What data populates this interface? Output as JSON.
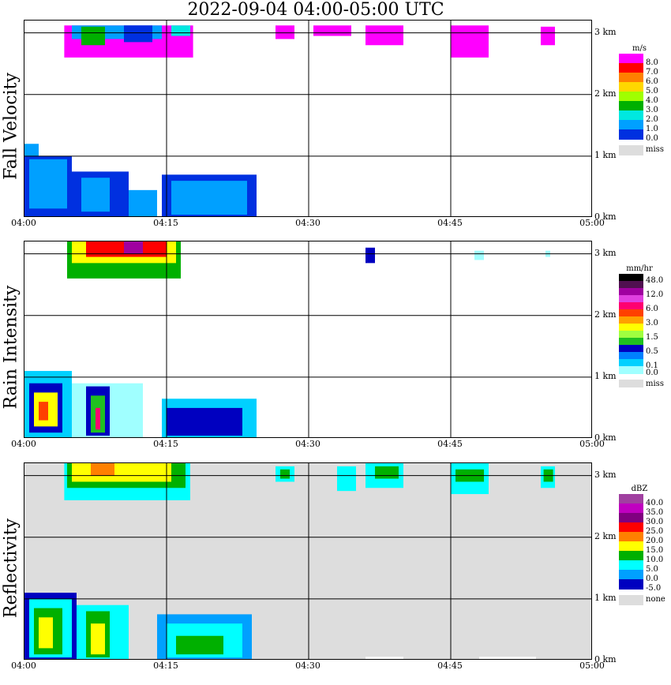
{
  "title": "2022-09-04   04:00-05:00 UTC",
  "chart_data": [
    {
      "type": "heatmap",
      "panel": "Fall Velocity",
      "unit": "m/s",
      "xlim": [
        "04:00",
        "05:00"
      ],
      "ylim_km": [
        0,
        3.2
      ],
      "x_ticks": [
        "04:00",
        "04:15",
        "04:30",
        "04:45",
        "05:00"
      ],
      "y_ticks": [
        "0 km",
        "1 km",
        "2 km",
        "3 km"
      ],
      "grid": true,
      "background": "#ffffff",
      "legend": {
        "placement": "right",
        "levels": [
          {
            "label": "8.0",
            "color": "#ff00ff"
          },
          {
            "label": "7.0",
            "color": "#ff0000"
          },
          {
            "label": "6.0",
            "color": "#ff8000"
          },
          {
            "label": "5.0",
            "color": "#ffd700"
          },
          {
            "label": "4.0",
            "color": "#a0ff00"
          },
          {
            "label": "3.0",
            "color": "#00b000"
          },
          {
            "label": "2.0",
            "color": "#00e8e0"
          },
          {
            "label": "1.0",
            "color": "#00a0ff"
          },
          {
            "label": "0.0",
            "color": "#0030e0"
          },
          {
            "label": "miss",
            "color": "#dddddd"
          }
        ]
      },
      "cells": [
        {
          "t0": 4.2,
          "t1": 17.8,
          "h0": 2.6,
          "h1": 3.12,
          "color": "#ff00ff"
        },
        {
          "t0": 5.0,
          "t1": 14.5,
          "h0": 2.9,
          "h1": 3.12,
          "color": "#00a0ff"
        },
        {
          "t0": 6.0,
          "t1": 8.5,
          "h0": 2.8,
          "h1": 3.1,
          "color": "#00b000"
        },
        {
          "t0": 10.5,
          "t1": 13.5,
          "h0": 2.85,
          "h1": 3.12,
          "color": "#0030e0"
        },
        {
          "t0": 15.5,
          "t1": 17.5,
          "h0": 2.95,
          "h1": 3.12,
          "color": "#00e8e0"
        },
        {
          "t0": 0.0,
          "t1": 1.5,
          "h0": 0.0,
          "h1": 1.2,
          "color": "#00a0ff"
        },
        {
          "t0": 0.0,
          "t1": 5.0,
          "h0": 0.0,
          "h1": 1.0,
          "color": "#0030e0"
        },
        {
          "t0": 0.5,
          "t1": 4.5,
          "h0": 0.15,
          "h1": 0.95,
          "color": "#00a0ff"
        },
        {
          "t0": 5.0,
          "t1": 11.0,
          "h0": 0.0,
          "h1": 0.75,
          "color": "#0030e0"
        },
        {
          "t0": 6.0,
          "t1": 9.0,
          "h0": 0.1,
          "h1": 0.65,
          "color": "#00a0ff"
        },
        {
          "t0": 11.0,
          "t1": 14.0,
          "h0": 0.0,
          "h1": 0.45,
          "color": "#00a0ff"
        },
        {
          "t0": 14.5,
          "t1": 24.5,
          "h0": 0.0,
          "h1": 0.7,
          "color": "#0030e0"
        },
        {
          "t0": 15.5,
          "t1": 23.5,
          "h0": 0.05,
          "h1": 0.6,
          "color": "#00a0ff"
        },
        {
          "t0": 26.5,
          "t1": 28.5,
          "h0": 2.9,
          "h1": 3.12,
          "color": "#ff00ff"
        },
        {
          "t0": 30.5,
          "t1": 34.5,
          "h0": 2.95,
          "h1": 3.12,
          "color": "#ff00ff"
        },
        {
          "t0": 36.0,
          "t1": 40.0,
          "h0": 2.8,
          "h1": 3.12,
          "color": "#ff00ff"
        },
        {
          "t0": 45.0,
          "t1": 49.0,
          "h0": 2.6,
          "h1": 3.12,
          "color": "#ff00ff"
        },
        {
          "t0": 54.5,
          "t1": 56.0,
          "h0": 2.8,
          "h1": 3.1,
          "color": "#ff00ff"
        }
      ]
    },
    {
      "type": "heatmap",
      "panel": "Rain Intensity",
      "unit": "mm/hr",
      "xlim": [
        "04:00",
        "05:00"
      ],
      "ylim_km": [
        0,
        3.2
      ],
      "x_ticks": [
        "04:00",
        "04:15",
        "04:30",
        "04:45",
        "05:00"
      ],
      "y_ticks": [
        "0 km",
        "1 km",
        "2 km",
        "3 km"
      ],
      "grid": true,
      "background": "#ffffff",
      "legend": {
        "placement": "right",
        "levels": [
          {
            "label": "48.0",
            "color": "#000000"
          },
          {
            "label": "",
            "color": "#501050"
          },
          {
            "label": "12.0",
            "color": "#a000a0"
          },
          {
            "label": "",
            "color": "#e040e0"
          },
          {
            "label": "6.0",
            "color": "#ff0070"
          },
          {
            "label": "",
            "color": "#ff4000"
          },
          {
            "label": "3.0",
            "color": "#ffa000"
          },
          {
            "label": "",
            "color": "#ffff00"
          },
          {
            "label": "1.5",
            "color": "#a0ff40"
          },
          {
            "label": "",
            "color": "#20c020"
          },
          {
            "label": "0.5",
            "color": "#0000c0"
          },
          {
            "label": "",
            "color": "#0080ff"
          },
          {
            "label": "0.1",
            "color": "#00d0ff"
          },
          {
            "label": "0.0",
            "color": "#a0ffff"
          },
          {
            "label": "miss",
            "color": "#dddddd"
          }
        ]
      },
      "cells": [
        {
          "t0": 4.5,
          "t1": 16.5,
          "h0": 2.6,
          "h1": 3.2,
          "color": "#00b000"
        },
        {
          "t0": 5.0,
          "t1": 16.0,
          "h0": 2.85,
          "h1": 3.2,
          "color": "#ffff00"
        },
        {
          "t0": 6.5,
          "t1": 15.0,
          "h0": 2.95,
          "h1": 3.2,
          "color": "#ff0000"
        },
        {
          "t0": 10.5,
          "t1": 12.5,
          "h0": 3.0,
          "h1": 3.2,
          "color": "#a000a0"
        },
        {
          "t0": 0.0,
          "t1": 5.0,
          "h0": 0.0,
          "h1": 1.1,
          "color": "#00d0ff"
        },
        {
          "t0": 0.5,
          "t1": 4.0,
          "h0": 0.1,
          "h1": 0.9,
          "color": "#0000c0"
        },
        {
          "t0": 1.0,
          "t1": 3.5,
          "h0": 0.2,
          "h1": 0.75,
          "color": "#ffff00"
        },
        {
          "t0": 1.5,
          "t1": 2.5,
          "h0": 0.3,
          "h1": 0.6,
          "color": "#ff4000"
        },
        {
          "t0": 5.0,
          "t1": 12.5,
          "h0": 0.0,
          "h1": 0.9,
          "color": "#a0ffff"
        },
        {
          "t0": 6.5,
          "t1": 9.0,
          "h0": 0.05,
          "h1": 0.85,
          "color": "#0000c0"
        },
        {
          "t0": 7.0,
          "t1": 8.5,
          "h0": 0.1,
          "h1": 0.7,
          "color": "#20c020"
        },
        {
          "t0": 7.5,
          "t1": 8.0,
          "h0": 0.15,
          "h1": 0.5,
          "color": "#ff0070"
        },
        {
          "t0": 14.5,
          "t1": 24.5,
          "h0": 0.0,
          "h1": 0.65,
          "color": "#00d0ff"
        },
        {
          "t0": 15.0,
          "t1": 23.0,
          "h0": 0.05,
          "h1": 0.5,
          "color": "#0000c0"
        },
        {
          "t0": 36.0,
          "t1": 37.0,
          "h0": 2.85,
          "h1": 3.1,
          "color": "#0000c0"
        },
        {
          "t0": 47.5,
          "t1": 48.5,
          "h0": 2.9,
          "h1": 3.05,
          "color": "#a0ffff"
        },
        {
          "t0": 55.0,
          "t1": 55.5,
          "h0": 2.95,
          "h1": 3.05,
          "color": "#a0ffff"
        }
      ]
    },
    {
      "type": "heatmap",
      "panel": "Reflectivity",
      "unit": "dBZ",
      "xlim": [
        "04:00",
        "05:00"
      ],
      "ylim_km": [
        0,
        3.2
      ],
      "x_ticks": [
        "04:00",
        "04:15",
        "04:30",
        "04:45",
        "05:00"
      ],
      "y_ticks": [
        "0 km",
        "1 km",
        "2 km",
        "3 km"
      ],
      "grid": true,
      "background": "#dddddd",
      "legend": {
        "placement": "right",
        "levels": [
          {
            "label": "40.0",
            "color": "#a040a0"
          },
          {
            "label": "35.0",
            "color": "#c000c0"
          },
          {
            "label": "30.0",
            "color": "#800080"
          },
          {
            "label": "25.0",
            "color": "#ff0000"
          },
          {
            "label": "20.0",
            "color": "#ff8000"
          },
          {
            "label": "15.0",
            "color": "#ffff00"
          },
          {
            "label": "10.0",
            "color": "#00b000"
          },
          {
            "label": "5.0",
            "color": "#00ffff"
          },
          {
            "label": "0.0",
            "color": "#00a0ff"
          },
          {
            "label": "-5.0",
            "color": "#0000c0"
          },
          {
            "label": "none",
            "color": "#dddddd"
          }
        ]
      },
      "cells": [
        {
          "t0": 4.2,
          "t1": 17.5,
          "h0": 2.6,
          "h1": 3.2,
          "color": "#00ffff"
        },
        {
          "t0": 4.5,
          "t1": 17.0,
          "h0": 2.8,
          "h1": 3.2,
          "color": "#00b000"
        },
        {
          "t0": 5.0,
          "t1": 15.5,
          "h0": 2.9,
          "h1": 3.2,
          "color": "#ffff00"
        },
        {
          "t0": 7.0,
          "t1": 9.5,
          "h0": 3.0,
          "h1": 3.2,
          "color": "#ff8000"
        },
        {
          "t0": 0.0,
          "t1": 5.5,
          "h0": 0.0,
          "h1": 1.1,
          "color": "#0000c0"
        },
        {
          "t0": 0.5,
          "t1": 5.0,
          "h0": 0.05,
          "h1": 1.0,
          "color": "#00ffff"
        },
        {
          "t0": 1.0,
          "t1": 4.0,
          "h0": 0.1,
          "h1": 0.85,
          "color": "#00b000"
        },
        {
          "t0": 1.5,
          "t1": 3.0,
          "h0": 0.2,
          "h1": 0.7,
          "color": "#ffff00"
        },
        {
          "t0": 5.5,
          "t1": 11.0,
          "h0": 0.0,
          "h1": 0.9,
          "color": "#00ffff"
        },
        {
          "t0": 6.5,
          "t1": 9.0,
          "h0": 0.05,
          "h1": 0.8,
          "color": "#00b000"
        },
        {
          "t0": 7.0,
          "t1": 8.5,
          "h0": 0.1,
          "h1": 0.6,
          "color": "#ffff00"
        },
        {
          "t0": 14.0,
          "t1": 24.0,
          "h0": 0.0,
          "h1": 0.75,
          "color": "#00a0ff"
        },
        {
          "t0": 15.0,
          "t1": 23.0,
          "h0": 0.05,
          "h1": 0.6,
          "color": "#00ffff"
        },
        {
          "t0": 16.0,
          "t1": 21.0,
          "h0": 0.1,
          "h1": 0.4,
          "color": "#00b000"
        },
        {
          "t0": 26.5,
          "t1": 28.5,
          "h0": 2.9,
          "h1": 3.15,
          "color": "#00ffff"
        },
        {
          "t0": 27.0,
          "t1": 28.0,
          "h0": 2.95,
          "h1": 3.1,
          "color": "#00b000"
        },
        {
          "t0": 33.0,
          "t1": 35.0,
          "h0": 2.75,
          "h1": 3.15,
          "color": "#00ffff"
        },
        {
          "t0": 36.0,
          "t1": 40.0,
          "h0": 2.8,
          "h1": 3.2,
          "color": "#00ffff"
        },
        {
          "t0": 37.0,
          "t1": 39.5,
          "h0": 2.95,
          "h1": 3.15,
          "color": "#00b000"
        },
        {
          "t0": 45.0,
          "t1": 49.0,
          "h0": 2.7,
          "h1": 3.2,
          "color": "#00ffff"
        },
        {
          "t0": 45.5,
          "t1": 48.5,
          "h0": 2.9,
          "h1": 3.1,
          "color": "#00b000"
        },
        {
          "t0": 54.5,
          "t1": 56.0,
          "h0": 2.8,
          "h1": 3.15,
          "color": "#00ffff"
        },
        {
          "t0": 54.8,
          "t1": 55.8,
          "h0": 2.9,
          "h1": 3.1,
          "color": "#00b000"
        },
        {
          "t0": 36.0,
          "t1": 40.0,
          "h0": 0.0,
          "h1": 0.06,
          "color": "#ffffff"
        },
        {
          "t0": 48.0,
          "t1": 54.0,
          "h0": 0.0,
          "h1": 0.06,
          "color": "#ffffff"
        }
      ]
    }
  ]
}
